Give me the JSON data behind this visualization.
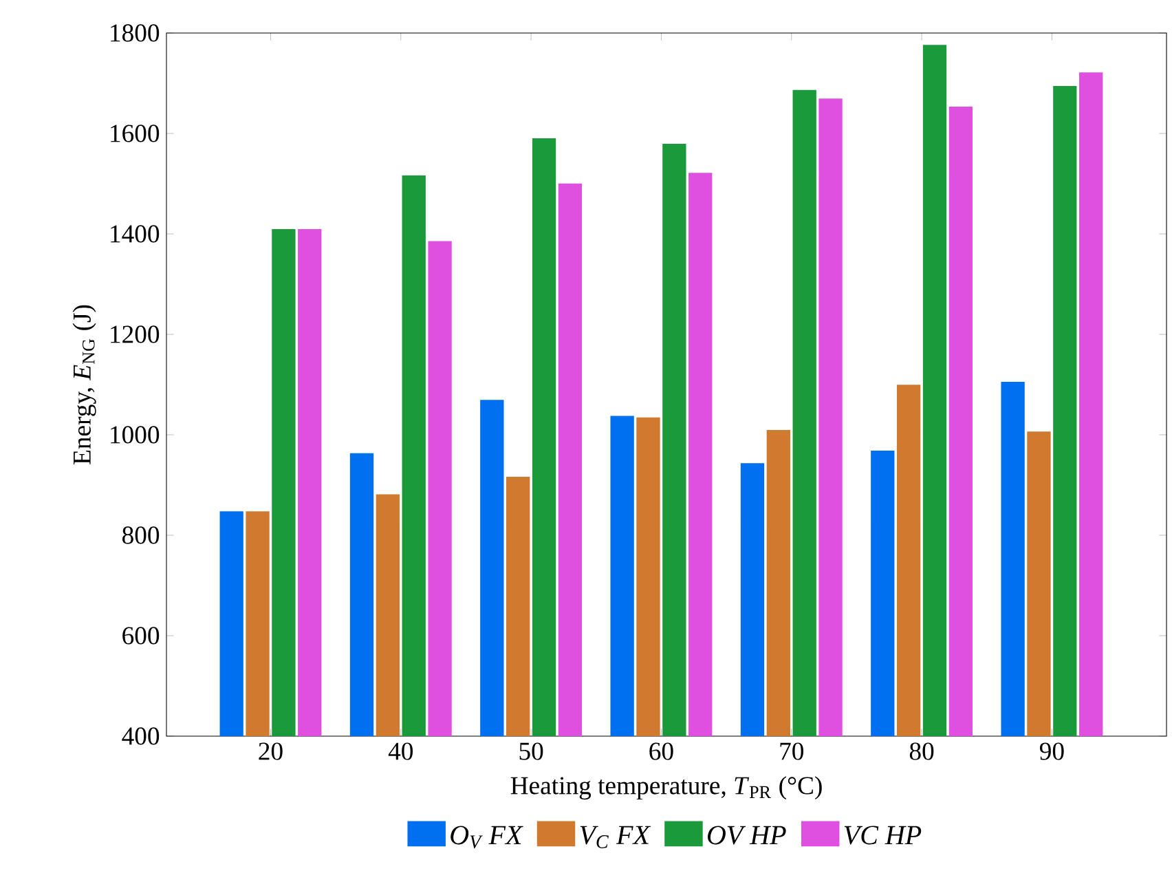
{
  "chart_data": {
    "type": "bar",
    "xlabel": "Heating temperature, *T*$_{PR}$ (°C)",
    "ylabel": "Energy, *E*$_{NG}$ (J)",
    "categories": [
      "20",
      "40",
      "50",
      "60",
      "70",
      "80",
      "90"
    ],
    "series": [
      {
        "name": "O$_{V}$  FX",
        "color": "#0070f0",
        "values": [
          846,
          962,
          1068,
          1036,
          942,
          967,
          1104
        ]
      },
      {
        "name": "V$_{C}$  FX",
        "color": "#d07a30",
        "values": [
          846,
          880,
          915,
          1033,
          1008,
          1098,
          1005
        ]
      },
      {
        "name": "OV  HP",
        "color": "#1a9a3a",
        "values": [
          1408,
          1515,
          1589,
          1578,
          1685,
          1775,
          1693
        ]
      },
      {
        "name": "VC  HP",
        "color": "#e050e0",
        "values": [
          1408,
          1384,
          1499,
          1520,
          1668,
          1652,
          1720
        ]
      }
    ],
    "ylim": [
      400,
      1800
    ],
    "yticks": [
      400,
      600,
      800,
      1000,
      1200,
      1400,
      1600,
      1800
    ],
    "legend": "bottom"
  }
}
